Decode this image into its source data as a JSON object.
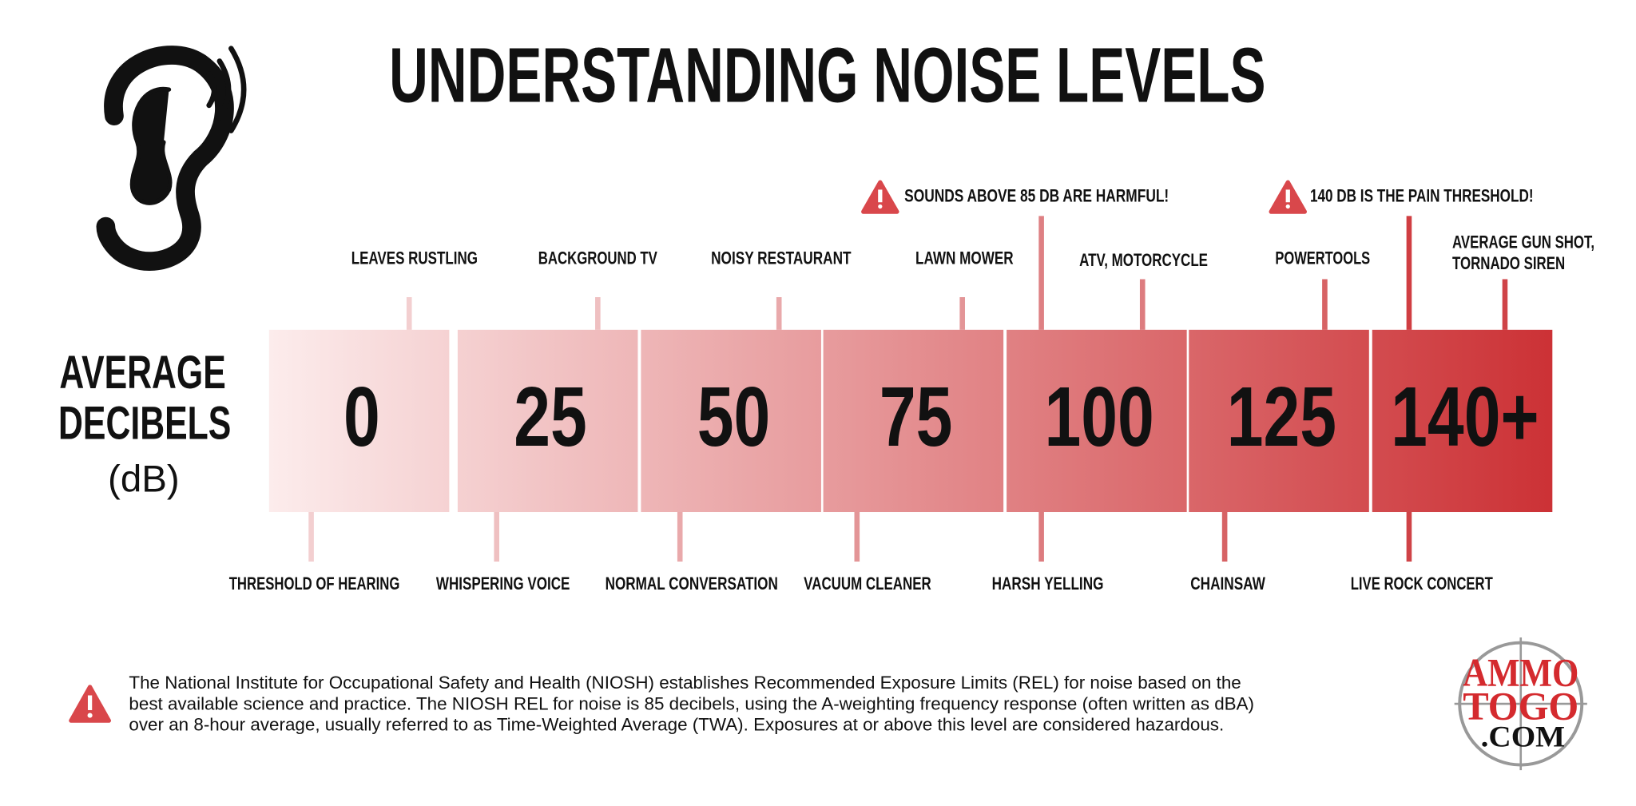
{
  "header": {
    "title": "UNDERSTANDING NOISE LEVELS"
  },
  "scale": {
    "label": [
      "AVERAGE",
      "DECIBELS",
      "(dB)"
    ],
    "levels": [
      "0",
      "25",
      "50",
      "75",
      "100",
      "125",
      "140+"
    ]
  },
  "above": [
    "LEAVES RUSTLING",
    "BACKGROUND TV",
    "NOISY RESTAURANT",
    "LAWN MOWER",
    "ATV, MOTORCYCLE",
    "POWERTOOLS",
    [
      "AVERAGE GUN SHOT,",
      "TORNADO SIREN"
    ]
  ],
  "below": [
    "THRESHOLD OF HEARING",
    "WHISPERING VOICE",
    "NORMAL CONVERSATION",
    "VACUUM CLEANER",
    "HARSH YELLING",
    "CHAINSAW",
    "LIVE ROCK CONCERT"
  ],
  "warnings": [
    "SOUNDS ABOVE 85 DB ARE HARMFUL!",
    "140 DB IS THE PAIN THRESHOLD!"
  ],
  "footer": {
    "lines": [
      "The National Institute for Occupational Safety and Health (NIOSH) establishes Recommended Exposure Limits (REL) for noise based on the",
      "best available science and practice. The NIOSH REL for noise is 85 decibels, using the A-weighting frequency response (often written as dBA)",
      "over an 8-hour average, usually referred to as Time-Weighted Average (TWA). Exposures at or above this level are considered hazardous."
    ]
  },
  "logo": {
    "lines": [
      "AMMO",
      "TOGO",
      ".COM"
    ]
  }
}
